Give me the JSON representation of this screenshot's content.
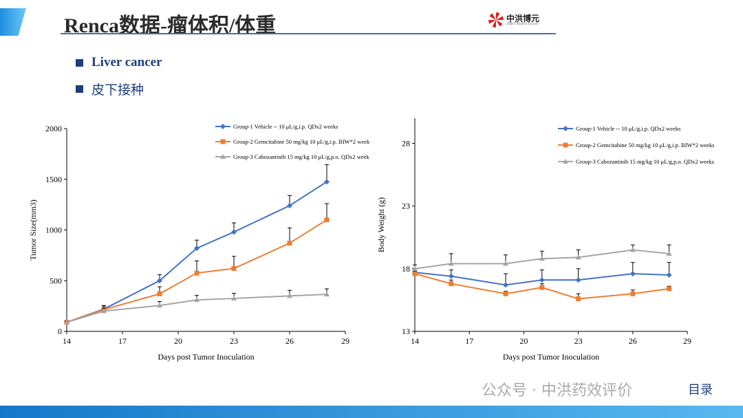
{
  "header": {
    "title": "Renca数据-瘤体积/体重",
    "logo_name": "中洪博元",
    "logo_sub": "ZHBY Biotech Co.Ltd"
  },
  "bullets": [
    "Liver cancer",
    "皮下接种"
  ],
  "watermark": "公众号 · 中洪药效评价",
  "toc_label": "目录",
  "colors": {
    "g1": "#4472c4",
    "g2": "#ed7d31",
    "g3": "#a5a5a5"
  },
  "chart_data": [
    {
      "type": "line",
      "xlabel": "Days post Tumor Inoculation",
      "ylabel": "Tumor Size(mm3)",
      "xlim": [
        14,
        29
      ],
      "ylim": [
        0,
        2000
      ],
      "xticks": [
        14,
        17,
        20,
        23,
        26,
        29
      ],
      "yticks": [
        0,
        500,
        1000,
        1500,
        2000
      ],
      "legend": "top-right",
      "x": [
        14,
        16,
        19,
        21,
        23,
        26,
        28
      ],
      "series": [
        {
          "name": "Group-1 Vehicle -- 10 μL/g,i.p. QDx2 weeks",
          "values": [
            90,
            220,
            500,
            820,
            980,
            1240,
            1475
          ],
          "errors": [
            10,
            30,
            60,
            80,
            90,
            100,
            170
          ],
          "marker": "diamond"
        },
        {
          "name": "Group-2 Gemcitabine 50 mg/kg 10 μL/g,i.p. BIW*2 week",
          "values": [
            90,
            215,
            370,
            575,
            620,
            870,
            1100
          ],
          "errors": [
            10,
            40,
            70,
            120,
            120,
            150,
            160
          ],
          "marker": "square"
        },
        {
          "name": "Group-3 Cabozantinib 15 mg/kg 10 μL/g,p.o. QDx2 week",
          "values": [
            90,
            200,
            255,
            310,
            325,
            350,
            365
          ],
          "errors": [
            10,
            30,
            40,
            45,
            50,
            55,
            55
          ],
          "marker": "triangle"
        }
      ]
    },
    {
      "type": "line",
      "xlabel": "Days post Tumor Inoculation",
      "ylabel": "Body Weight (g)",
      "xlim": [
        14,
        29
      ],
      "ylim": [
        13,
        30
      ],
      "xticks": [
        14,
        17,
        20,
        23,
        26,
        29
      ],
      "yticks": [
        13,
        18,
        23,
        28
      ],
      "legend": "top-right",
      "x": [
        14,
        16,
        19,
        21,
        23,
        26,
        28
      ],
      "series": [
        {
          "name": "Group-1 Vehicle -- 10 μL/g,i.p. QDx2 weeks",
          "values": [
            17.7,
            17.4,
            16.7,
            17.1,
            17.1,
            17.6,
            17.5
          ],
          "errors": [
            0.3,
            0.5,
            0.9,
            0.8,
            0.9,
            0.9,
            1.0
          ],
          "marker": "diamond"
        },
        {
          "name": "Group-2 Gemcitabine 50 mg/kg 10 μL/g,i.p. BIW*2 weeks",
          "values": [
            17.6,
            16.8,
            16.0,
            16.5,
            15.6,
            16.0,
            16.4
          ],
          "errors": [
            0.2,
            0.3,
            0.2,
            0.3,
            0.4,
            0.3,
            0.2
          ],
          "marker": "square"
        },
        {
          "name": "Group-3 Cabozantinib 15 mg/kg 10 μL/g,p.o. QDx2 weeks",
          "values": [
            18.0,
            18.4,
            18.4,
            18.8,
            18.9,
            19.5,
            19.2
          ],
          "errors": [
            0.3,
            0.8,
            0.7,
            0.6,
            0.6,
            0.4,
            0.7
          ],
          "marker": "triangle"
        }
      ]
    }
  ]
}
